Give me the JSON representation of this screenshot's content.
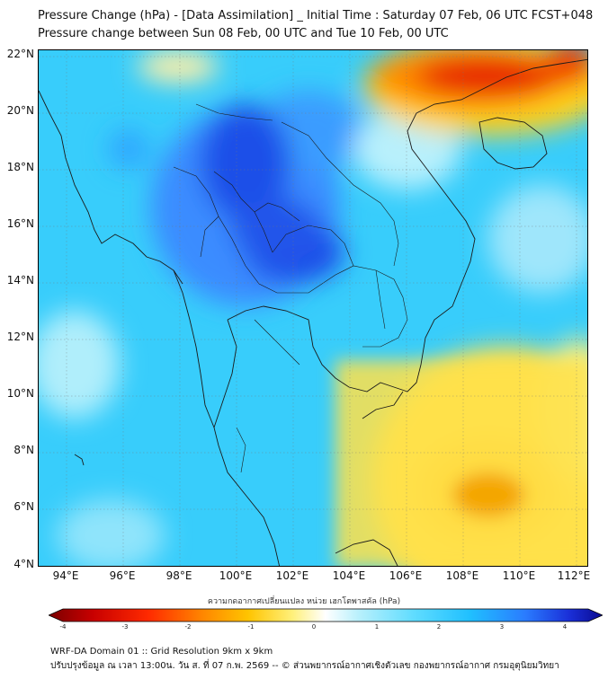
{
  "title": {
    "line1": "Pressure Change (hPa) - [Data Assimilation] _ Initial Time : Saturday 07 Feb, 06 UTC FCST+048",
    "line2": "Pressure change between Sun 08 Feb, 00 UTC and Tue 10 Feb, 00 UTC"
  },
  "map": {
    "lat_labels": [
      "22°N",
      "20°N",
      "18°N",
      "16°N",
      "14°N",
      "12°N",
      "10°N",
      "8°N",
      "6°N",
      "4°N"
    ],
    "lon_labels": [
      "94°E",
      "96°E",
      "98°E",
      "100°E",
      "102°E",
      "104°E",
      "106°E",
      "108°E",
      "110°E",
      "112°E"
    ],
    "colors": {
      "base": "#33ccff",
      "strong_fall": "#1a3fe6",
      "moderate_fall": "#3a8cff",
      "weak": "#a8ecfa",
      "rise_weak": "#f8ee70",
      "rise": "#ffc21a",
      "rise_strong": "#e81e00"
    }
  },
  "colorbar": {
    "title": "ความกดอากาศเปลี่ยนแปลง หน่วย เฮกโตพาสคัล (hPa)",
    "ticks": [
      "-4",
      "-3",
      "-2",
      "-1",
      "0",
      "1",
      "2",
      "3",
      "4"
    ],
    "min": -4,
    "max": 4
  },
  "footer": {
    "line1": "WRF-DA Domain 01 :: Grid Resolution 9km x 9km",
    "line2": "ปรับปรุงข้อมูล ณ เวลา 13:00น. วัน ส. ที่ 07 ก.พ. 2569 -- © ส่วนพยากรณ์อากาศเชิงตัวเลข กองพยากรณ์อากาศ กรมอุตุนิยมวิทยา"
  }
}
